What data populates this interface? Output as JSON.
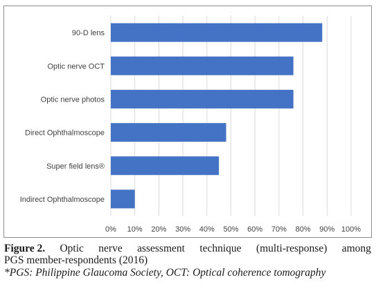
{
  "chart_data": {
    "type": "bar",
    "orientation": "horizontal",
    "categories": [
      "90-D lens",
      "Optic nerve OCT",
      "Optic nerve photos",
      "Direct Ophthalmoscope",
      "Super field lens®",
      "Indirect Ophthalmoscope"
    ],
    "values": [
      88,
      76,
      76,
      48,
      45,
      10
    ],
    "x_ticks": [
      "0%",
      "10%",
      "20%",
      "30%",
      "40%",
      "50%",
      "60%",
      "70%",
      "80%",
      "90%",
      "100%"
    ],
    "xlim": [
      0,
      100
    ],
    "grid": true,
    "bar_color": "#4472c4",
    "title": "",
    "xlabel": "",
    "ylabel": ""
  },
  "caption": {
    "label": "Figure 2.",
    "line1_words": [
      "Optic",
      "nerve",
      "assessment",
      "technique",
      "(multi-response)",
      "among"
    ],
    "line2": "PGS member-respondents (2016)",
    "note": "*PGS: Philippine Glaucoma Society, OCT: Optical coherence tomography"
  }
}
